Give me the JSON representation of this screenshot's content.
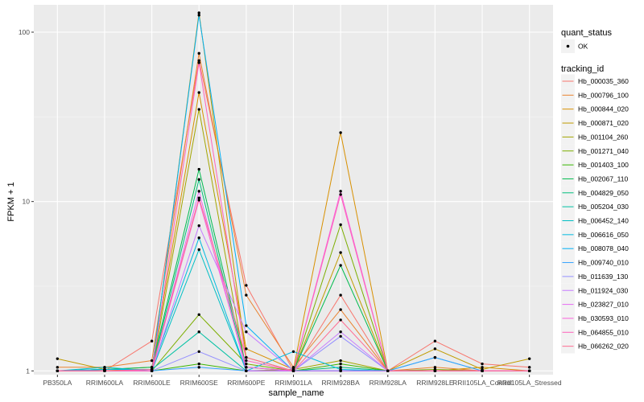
{
  "chart_data": {
    "type": "line",
    "xlabel": "sample_name",
    "ylabel": "FPKM + 1",
    "y_scale": "log10",
    "ylim": [
      0.95,
      145
    ],
    "y_ticks": [
      {
        "value": 1,
        "label": "1"
      },
      {
        "value": 10,
        "label": "10"
      },
      {
        "value": 100,
        "label": "100"
      }
    ],
    "categories": [
      "PB350LA",
      "RRIM600LA",
      "RRIM600LE",
      "RRIM600SE",
      "RRIM600PE",
      "RRIM901LA",
      "RRIM928BA",
      "RRIM928LA",
      "RRIM928LE",
      "RRII105LA_Control",
      "RRII105LA_Stressed"
    ],
    "point_legend": {
      "title": "quant_status",
      "entries": [
        "OK"
      ]
    },
    "legend_title": "tracking_id",
    "legend_position": "right",
    "grid": true,
    "series": [
      {
        "name": "Hb_000035_360",
        "color": "#F8766D",
        "values": [
          1.0,
          1.0,
          1.5,
          68,
          3.2,
          1.0,
          2.8,
          1.0,
          1.5,
          1.1,
          1.05
        ]
      },
      {
        "name": "Hb_000796_100",
        "color": "#EA8331",
        "values": [
          1.05,
          1.05,
          1.15,
          75,
          2.8,
          1.05,
          2.3,
          1.0,
          1.05,
          1.0,
          1.0
        ]
      },
      {
        "name": "Hb_000844_020",
        "color": "#D89000",
        "values": [
          1.0,
          1.02,
          1.05,
          44,
          1.35,
          1.02,
          25.5,
          1.0,
          1.0,
          1.05,
          1.0
        ]
      },
      {
        "name": "Hb_000871_020",
        "color": "#C09B00",
        "values": [
          1.18,
          1.02,
          1.0,
          130,
          1.2,
          1.0,
          5.0,
          1.0,
          1.35,
          1.02,
          1.18
        ]
      },
      {
        "name": "Hb_001104_260",
        "color": "#A3A500",
        "values": [
          1.0,
          1.0,
          1.0,
          35,
          1.0,
          1.02,
          1.15,
          1.0,
          1.0,
          1.0,
          1.0
        ]
      },
      {
        "name": "Hb_001271_040",
        "color": "#7CAE00",
        "values": [
          1.0,
          1.0,
          1.0,
          2.15,
          1.1,
          1.0,
          7.3,
          1.0,
          1.02,
          1.0,
          1.0
        ]
      },
      {
        "name": "Hb_001403_100",
        "color": "#39B600",
        "values": [
          1.0,
          1.0,
          1.0,
          1.1,
          1.0,
          1.0,
          1.1,
          1.0,
          1.0,
          1.0,
          1.0
        ]
      },
      {
        "name": "Hb_002067_110",
        "color": "#00BB4E",
        "values": [
          1.0,
          1.02,
          1.05,
          15.5,
          1.05,
          1.0,
          4.2,
          1.0,
          1.0,
          1.0,
          1.0
        ]
      },
      {
        "name": "Hb_004829_050",
        "color": "#00BF7D",
        "values": [
          1.0,
          1.02,
          1.02,
          13.5,
          1.0,
          1.0,
          1.05,
          1.0,
          1.0,
          1.0,
          1.0
        ]
      },
      {
        "name": "Hb_005204_030",
        "color": "#00C1A3",
        "values": [
          1.0,
          1.02,
          1.02,
          1.7,
          1.0,
          1.0,
          1.0,
          1.0,
          1.0,
          1.0,
          1.0
        ]
      },
      {
        "name": "Hb_006452_140",
        "color": "#00BFC4",
        "values": [
          1.0,
          1.05,
          1.0,
          5.2,
          1.0,
          1.0,
          1.0,
          1.0,
          1.0,
          1.0,
          1.0
        ]
      },
      {
        "name": "Hb_006616_050",
        "color": "#00BAE0",
        "values": [
          1.0,
          1.02,
          1.02,
          6.1,
          1.0,
          1.3,
          1.02,
          1.0,
          1.0,
          1.0,
          1.0
        ]
      },
      {
        "name": "Hb_008078_040",
        "color": "#00B0F6",
        "values": [
          1.0,
          1.0,
          1.0,
          126,
          1.85,
          1.0,
          1.0,
          1.0,
          1.2,
          1.0,
          1.0
        ]
      },
      {
        "name": "Hb_009740_010",
        "color": "#35A2FF",
        "values": [
          1.0,
          1.0,
          1.0,
          1.05,
          1.0,
          1.0,
          1.0,
          1.0,
          1.2,
          1.0,
          1.0
        ]
      },
      {
        "name": "Hb_011639_130",
        "color": "#9590FF",
        "values": [
          1.0,
          1.0,
          1.0,
          1.3,
          1.0,
          1.0,
          1.6,
          1.0,
          1.0,
          1.0,
          1.0
        ]
      },
      {
        "name": "Hb_011924_030",
        "color": "#C77CFF",
        "values": [
          1.0,
          1.0,
          1.0,
          7.2,
          1.7,
          1.0,
          1.7,
          1.0,
          1.0,
          1.0,
          1.0
        ]
      },
      {
        "name": "Hb_023827_010",
        "color": "#E76BF3",
        "values": [
          1.0,
          1.0,
          1.0,
          11.5,
          1.0,
          1.0,
          1.0,
          1.0,
          1.0,
          1.0,
          1.0
        ]
      },
      {
        "name": "Hb_030593_010",
        "color": "#FA62DB",
        "values": [
          1.0,
          1.0,
          1.0,
          10.2,
          1.05,
          1.0,
          11.5,
          1.0,
          1.0,
          1.0,
          1.0
        ]
      },
      {
        "name": "Hb_064855_010",
        "color": "#FF62BC",
        "values": [
          1.0,
          1.0,
          1.0,
          66,
          1.15,
          1.0,
          11.0,
          1.0,
          1.0,
          1.0,
          1.0
        ]
      },
      {
        "name": "Hb_066262_020",
        "color": "#FF6C91",
        "values": [
          1.0,
          1.0,
          1.02,
          10.5,
          1.2,
          1.0,
          2.0,
          1.0,
          1.0,
          1.0,
          1.0
        ]
      }
    ]
  }
}
